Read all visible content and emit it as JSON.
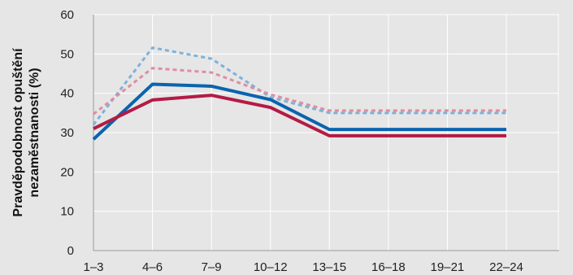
{
  "chart_data": {
    "type": "line",
    "title": "",
    "xlabel": "",
    "ylabel": "Pravděpodobnost opuštění nezaměstnanosti (%)",
    "ylabel_lines": [
      "Pravděpodobnost opuštění",
      "nezaměstnanosti (%)"
    ],
    "categories": [
      "1–3",
      "4–6",
      "7–9",
      "10–12",
      "13–15",
      "16–18",
      "19–21",
      "22–24"
    ],
    "ylim": [
      0,
      60
    ],
    "yticks": [
      0,
      10,
      20,
      30,
      40,
      50,
      60
    ],
    "grid": true,
    "legend": "none",
    "series": [
      {
        "color": "#0a64ae",
        "dashed": false,
        "values": [
          28.3,
          42.3,
          41.8,
          38.4,
          30.8,
          30.8,
          30.8,
          30.8
        ]
      },
      {
        "color": "#b31b45",
        "dashed": false,
        "values": [
          31.0,
          38.3,
          39.5,
          36.4,
          29.2,
          29.2,
          29.2,
          29.2
        ]
      },
      {
        "color": "#7fb2d9",
        "dashed": true,
        "values": [
          32.0,
          51.6,
          48.8,
          39.0,
          35.0,
          35.0,
          35.0,
          35.0
        ]
      },
      {
        "color": "#de8ea1",
        "dashed": true,
        "values": [
          34.7,
          46.4,
          45.3,
          39.7,
          35.6,
          35.6,
          35.6,
          35.6
        ]
      }
    ]
  }
}
